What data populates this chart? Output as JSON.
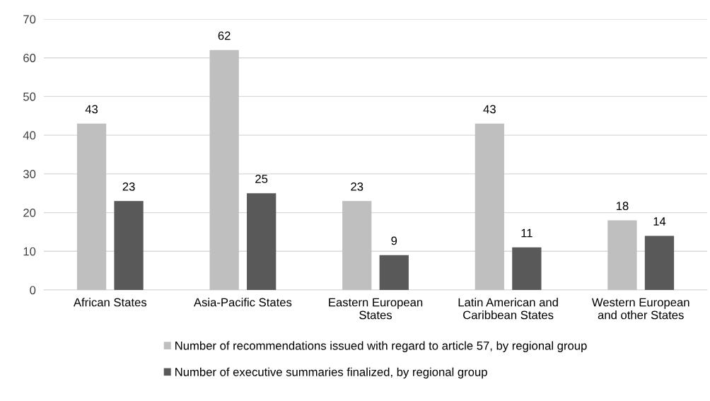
{
  "chart_data": {
    "type": "bar",
    "categories": [
      "African States",
      "Asia-Pacific States",
      "Eastern European\nStates",
      "Latin American and\nCaribbean States",
      "Western European\nand other States"
    ],
    "series": [
      {
        "name": "Number of recommendations issued with regard to article 57, by regional group",
        "color": "#bfbfbf",
        "values": [
          43,
          62,
          23,
          43,
          18
        ]
      },
      {
        "name": "Number of executive summaries finalized, by regional group",
        "color": "#595959",
        "values": [
          23,
          25,
          9,
          11,
          14
        ]
      }
    ],
    "ylim": [
      0,
      70
    ],
    "yticks": [
      0,
      10,
      20,
      30,
      40,
      50,
      60,
      70
    ],
    "grid": "y",
    "legend": "bottom",
    "data_labels": true
  }
}
